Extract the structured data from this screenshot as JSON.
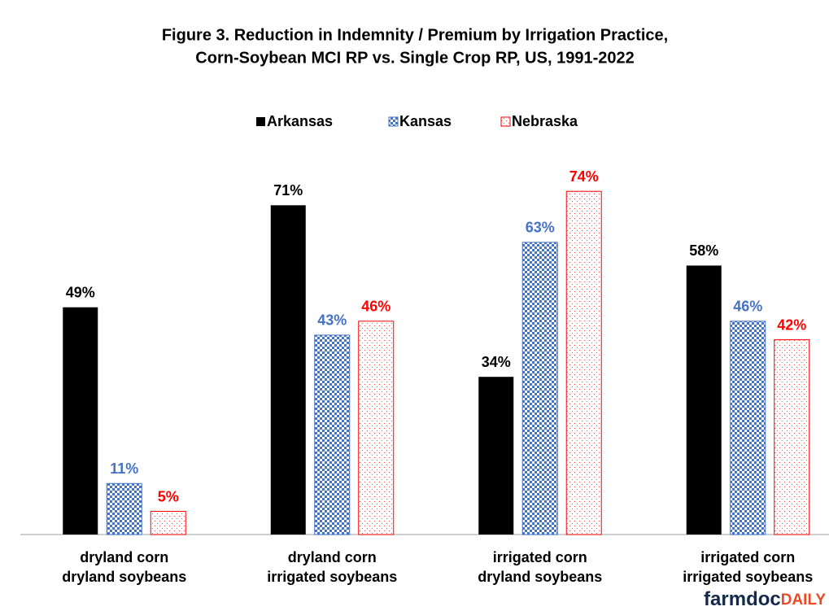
{
  "chart_data": {
    "type": "bar",
    "title": [
      "Figure 3.  Reduction in Indemnity  / Premium  by Irrigation Practice,",
      "Corn-Soybean  MCI  RP vs. Single Crop RP, US, 1991-2022"
    ],
    "categories": [
      [
        "dryland corn",
        "dryland soybeans"
      ],
      [
        "dryland corn",
        "irrigated soybeans"
      ],
      [
        "irrigated corn",
        "dryland soybeans"
      ],
      [
        "irrigated corn",
        "irrigated soybeans"
      ]
    ],
    "series": [
      {
        "name": "Arkansas",
        "color": "#000000",
        "pattern": "solid",
        "values": [
          49,
          71,
          34,
          58
        ],
        "value_labels": [
          "49%",
          "71%",
          "34%",
          "58%"
        ]
      },
      {
        "name": "Kansas",
        "color": "#4472c4",
        "pattern": "checker",
        "values": [
          11,
          43,
          63,
          46
        ],
        "value_labels": [
          "11%",
          "43%",
          "63%",
          "46%"
        ]
      },
      {
        "name": "Nebraska",
        "color": "#ff0000",
        "pattern": "dots",
        "values": [
          5,
          46,
          74,
          42
        ],
        "value_labels": [
          "5%",
          "46%",
          "74%",
          "42%"
        ]
      }
    ],
    "legend": "top",
    "watermark": [
      "farmdoc",
      "DAILY"
    ]
  }
}
